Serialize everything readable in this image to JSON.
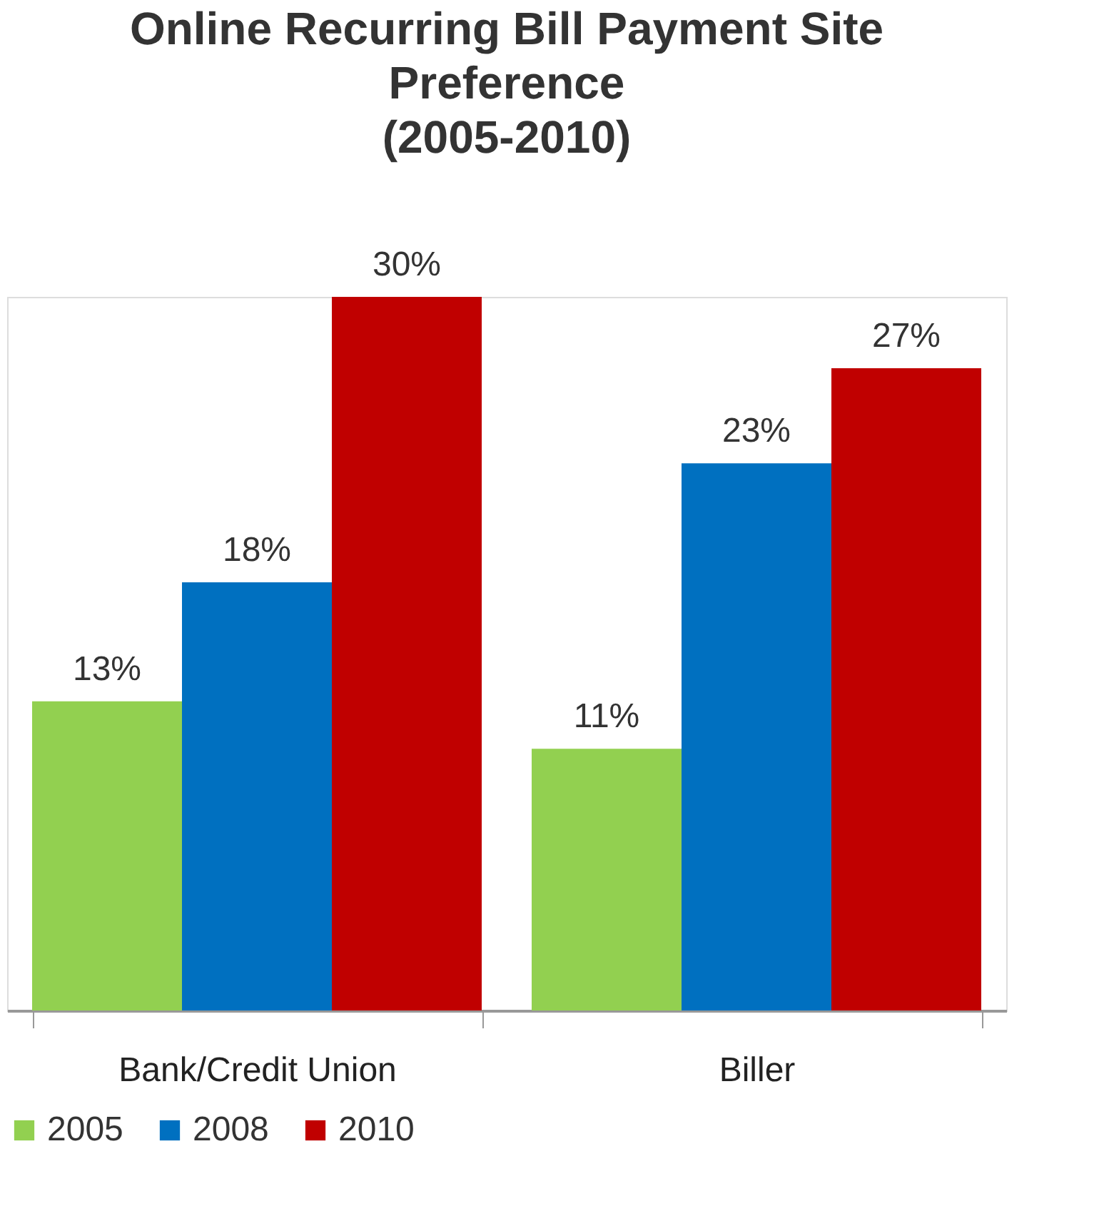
{
  "chart_data": {
    "type": "bar",
    "title": "Online Recurring Bill Payment Site\nPreference\n(2005-2010)",
    "categories": [
      "Bank/Credit Union",
      "Biller"
    ],
    "series": [
      {
        "name": "2005",
        "color": "#92d050",
        "values": [
          13,
          11
        ],
        "value_labels": [
          "13%",
          "11%"
        ]
      },
      {
        "name": "2008",
        "color": "#0070c0",
        "values": [
          18,
          23
        ],
        "value_labels": [
          "18%",
          "23%"
        ]
      },
      {
        "name": "2010",
        "color": "#c00000",
        "values": [
          30,
          27
        ],
        "value_labels": [
          "30%",
          "27%"
        ]
      }
    ],
    "legend": "bottom",
    "grid": false
  }
}
